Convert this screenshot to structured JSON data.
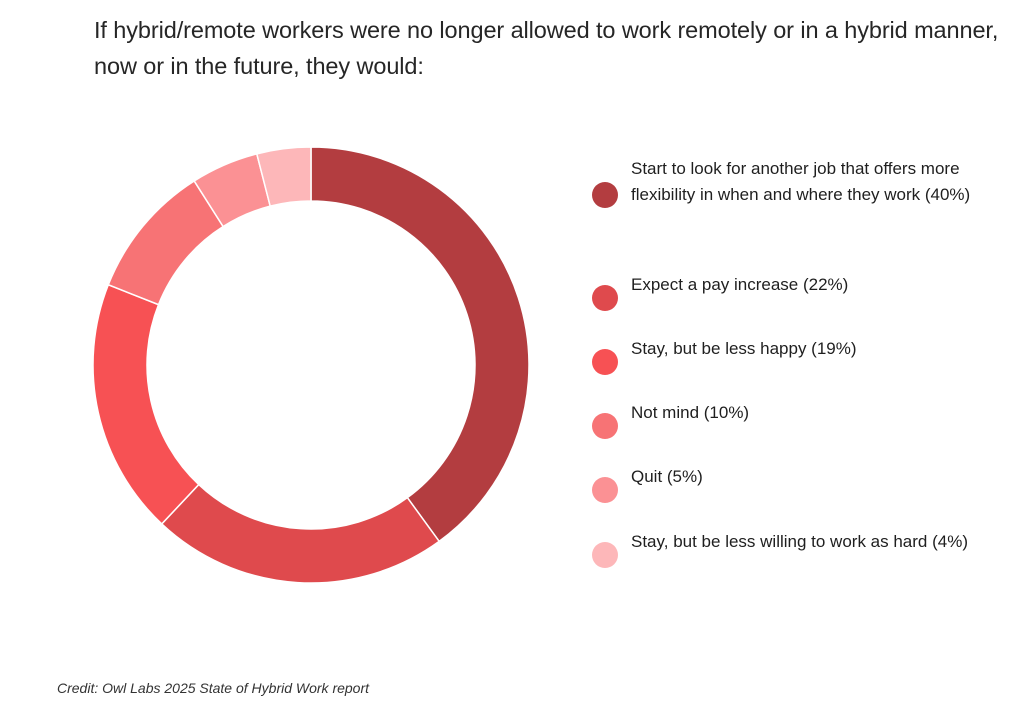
{
  "chart_data": {
    "type": "pie",
    "variant": "donut",
    "title": "If hybrid/remote workers were no longer allowed to work remotely or in a hybrid manner, now or in the future, they would:",
    "categories": [
      "Start to look for another job that offers more flexibility in when and where they work",
      "Expect a pay increase",
      "Stay, but be less happy",
      "Not mind",
      "Quit",
      "Stay, but be less willing to work as hard"
    ],
    "values": [
      40,
      22,
      19,
      10,
      5,
      4
    ],
    "unit": "%",
    "legend_labels": [
      "Start to look for another job that offers more flexibility in when and where they work (40%)",
      "Expect a pay increase (22%)",
      "Stay, but be less happy (19%)",
      "Not mind (10%)",
      "Quit (5%)",
      "Stay, but be less willing to work as hard (4%)"
    ],
    "colors": [
      "#b33d40",
      "#df4a4d",
      "#f75154",
      "#f77375",
      "#fb9194",
      "#fdb7b9"
    ],
    "legend_position": "right"
  },
  "credit": "Credit: Owl Labs 2025 State of Hybrid Work report"
}
